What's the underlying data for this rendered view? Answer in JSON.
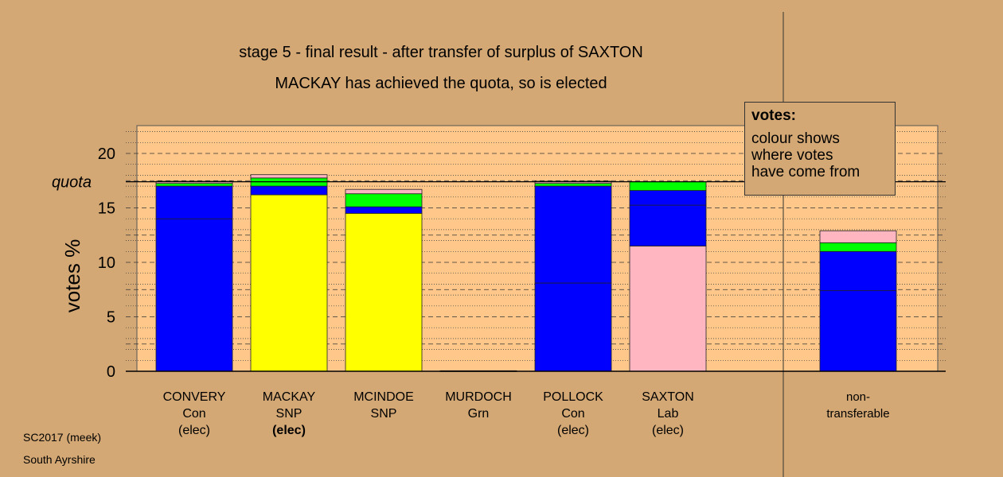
{
  "chart_data": {
    "type": "bar",
    "stacked": true,
    "title": "stage 5 - final result - after transfer of surplus of SAXTON",
    "subtitle": "MACKAY has achieved the quota, so is elected",
    "ylabel": "votes %",
    "ylim": [
      0,
      22
    ],
    "yticks": [
      0,
      5,
      10,
      15,
      20
    ],
    "quota": 17.4,
    "quota_label": "quota",
    "grid": true,
    "categories": [
      {
        "name": "CONVERY",
        "party": "Con",
        "status": "(elec)",
        "bold_status": false
      },
      {
        "name": "MACKAY",
        "party": "SNP",
        "status": "(elec)",
        "bold_status": true
      },
      {
        "name": "MCINDOE",
        "party": "SNP",
        "status": "",
        "bold_status": false
      },
      {
        "name": "MURDOCH",
        "party": "Grn",
        "status": "",
        "bold_status": false
      },
      {
        "name": "POLLOCK",
        "party": "Con",
        "status": "(elec)",
        "bold_status": false
      },
      {
        "name": "SAXTON",
        "party": "Lab",
        "status": "(elec)",
        "bold_status": false
      }
    ],
    "nontransferable_label_1": "non-",
    "nontransferable_label_2": "transferable",
    "bars": [
      {
        "segments": [
          {
            "color": "#0000FF",
            "value": 14.0
          },
          {
            "color": "#0000FF",
            "value": 3.0
          },
          {
            "color": "#00FF00",
            "value": 0.25
          },
          {
            "color": "#FFB6C1",
            "value": 0.2
          }
        ]
      },
      {
        "segments": [
          {
            "color": "#FFFF00",
            "value": 16.2
          },
          {
            "color": "#0000FF",
            "value": 0.8
          },
          {
            "color": "#00FF00",
            "value": 0.75
          },
          {
            "color": "#FFB6C1",
            "value": 0.3
          }
        ]
      },
      {
        "segments": [
          {
            "color": "#FFFF00",
            "value": 14.5
          },
          {
            "color": "#0000FF",
            "value": 0.6
          },
          {
            "color": "#00FF00",
            "value": 1.2
          },
          {
            "color": "#FFB6C1",
            "value": 0.4
          }
        ]
      },
      {
        "segments": [
          {
            "color": "#00FF00",
            "value": 0.05
          }
        ]
      },
      {
        "segments": [
          {
            "color": "#0000FF",
            "value": 8.1
          },
          {
            "color": "#0000FF",
            "value": 8.9
          },
          {
            "color": "#00FF00",
            "value": 0.25
          },
          {
            "color": "#FFB6C1",
            "value": 0.2
          }
        ]
      },
      {
        "segments": [
          {
            "color": "#FFB6C1",
            "value": 11.5
          },
          {
            "color": "#0000FF",
            "value": 3.75
          },
          {
            "color": "#0000FF",
            "value": 1.35
          },
          {
            "color": "#00FF00",
            "value": 0.8
          }
        ]
      },
      {
        "segments": [
          {
            "color": "#0000FF",
            "value": 7.4
          },
          {
            "color": "#0000FF",
            "value": 3.6
          },
          {
            "color": "#00FF00",
            "value": 0.8
          },
          {
            "color": "#FFB6C1",
            "value": 1.1
          }
        ]
      }
    ],
    "colors": {
      "background": "#D4A874",
      "plot_area": "#FFC88A",
      "yellow": "#FFFF00",
      "blue": "#0000FF",
      "green": "#00FF00",
      "pink": "#FFB6C1"
    }
  },
  "legend": {
    "title": "votes:",
    "text": "colour shows\nwhere votes\nhave come from"
  },
  "footer": {
    "line1": "SC2017 (meek)",
    "line2": "South Ayrshire"
  }
}
